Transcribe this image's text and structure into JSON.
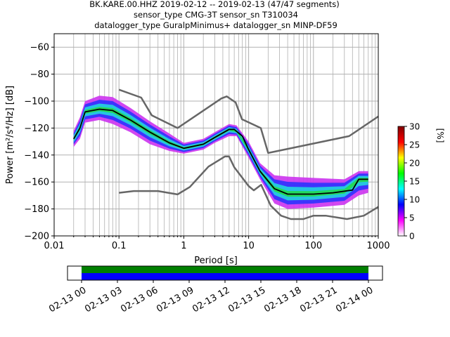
{
  "title": {
    "line1": "BK.KARE.00.HHZ   2019-02-12 -- 2019-02-13  (47/47 segments)",
    "line2": "sensor_type CMG-3T sensor_sn T310034",
    "line3": "datalogger_type GuralpMinimus+ datalogger_sn MINP-DF59"
  },
  "chart_data": [
    {
      "type": "heatmap",
      "xlabel": "Period [s]",
      "ylabel": "Power [m²/s⁴/Hz] [dB]",
      "xscale": "log",
      "xlim": [
        0.01,
        1000
      ],
      "ylim": [
        -200,
        -50
      ],
      "xticks": [
        "0.01",
        "0.1",
        "1",
        "10",
        "100",
        "1000"
      ],
      "yticks": [
        "−60",
        "−80",
        "−100",
        "−120",
        "−140",
        "−160",
        "−180",
        "−200"
      ],
      "grid": true,
      "colorbar": {
        "label": "[%]",
        "range": [
          0,
          30
        ],
        "ticks": [
          "0",
          "5",
          "10",
          "15",
          "20",
          "25",
          "30"
        ],
        "colors": [
          "#ffffff",
          "#ff00ff",
          "#0000ff",
          "#00ffff",
          "#00ff00",
          "#ffff00",
          "#ff0000",
          "#800000"
        ]
      },
      "density_band": {
        "upper": [
          {
            "x": 0.02,
            "y": -122
          },
          {
            "x": 0.025,
            "y": -112
          },
          {
            "x": 0.03,
            "y": -100
          },
          {
            "x": 0.05,
            "y": -96
          },
          {
            "x": 0.08,
            "y": -97
          },
          {
            "x": 0.15,
            "y": -105
          },
          {
            "x": 0.3,
            "y": -115
          },
          {
            "x": 0.6,
            "y": -124
          },
          {
            "x": 1.0,
            "y": -131
          },
          {
            "x": 2.0,
            "y": -128
          },
          {
            "x": 3.0,
            "y": -123
          },
          {
            "x": 5.0,
            "y": -117
          },
          {
            "x": 6.5,
            "y": -118
          },
          {
            "x": 10,
            "y": -130
          },
          {
            "x": 15,
            "y": -146
          },
          {
            "x": 25,
            "y": -155
          },
          {
            "x": 40,
            "y": -156
          },
          {
            "x": 100,
            "y": -157
          },
          {
            "x": 300,
            "y": -158
          },
          {
            "x": 500,
            "y": -152
          },
          {
            "x": 700,
            "y": -152
          }
        ],
        "lower": [
          {
            "x": 0.02,
            "y": -134
          },
          {
            "x": 0.025,
            "y": -128
          },
          {
            "x": 0.03,
            "y": -116
          },
          {
            "x": 0.05,
            "y": -114
          },
          {
            "x": 0.08,
            "y": -117
          },
          {
            "x": 0.15,
            "y": -123
          },
          {
            "x": 0.3,
            "y": -132
          },
          {
            "x": 0.6,
            "y": -137
          },
          {
            "x": 1.0,
            "y": -139
          },
          {
            "x": 2.0,
            "y": -136
          },
          {
            "x": 3.0,
            "y": -131
          },
          {
            "x": 5.0,
            "y": -126
          },
          {
            "x": 6.5,
            "y": -126
          },
          {
            "x": 10,
            "y": -142
          },
          {
            "x": 15,
            "y": -158
          },
          {
            "x": 25,
            "y": -176
          },
          {
            "x": 40,
            "y": -180
          },
          {
            "x": 100,
            "y": -179
          },
          {
            "x": 300,
            "y": -177
          },
          {
            "x": 500,
            "y": -170
          },
          {
            "x": 700,
            "y": -168
          }
        ]
      },
      "series": [
        {
          "type": "line",
          "color": "#000000",
          "points": [
            {
              "x": 0.02,
              "y": -128
            },
            {
              "x": 0.025,
              "y": -120
            },
            {
              "x": 0.03,
              "y": -108
            },
            {
              "x": 0.05,
              "y": -106
            },
            {
              "x": 0.08,
              "y": -107
            },
            {
              "x": 0.15,
              "y": -114
            },
            {
              "x": 0.3,
              "y": -123
            },
            {
              "x": 0.6,
              "y": -131
            },
            {
              "x": 1.0,
              "y": -135
            },
            {
              "x": 2.0,
              "y": -132
            },
            {
              "x": 3.0,
              "y": -127
            },
            {
              "x": 5.0,
              "y": -121
            },
            {
              "x": 6.0,
              "y": -121
            },
            {
              "x": 8.0,
              "y": -126
            },
            {
              "x": 10,
              "y": -136
            },
            {
              "x": 15,
              "y": -152
            },
            {
              "x": 25,
              "y": -165
            },
            {
              "x": 40,
              "y": -169
            },
            {
              "x": 100,
              "y": -169
            },
            {
              "x": 200,
              "y": -168
            },
            {
              "x": 400,
              "y": -166
            },
            {
              "x": 500,
              "y": -158
            },
            {
              "x": 700,
              "y": -158
            }
          ]
        },
        {
          "type": "line",
          "color": "#666666",
          "points": [
            {
              "x": 0.1,
              "y": -91.5
            },
            {
              "x": 0.22,
              "y": -97.4
            },
            {
              "x": 0.32,
              "y": -110.5
            },
            {
              "x": 0.8,
              "y": -120
            },
            {
              "x": 3.8,
              "y": -98
            },
            {
              "x": 4.6,
              "y": -96.5
            },
            {
              "x": 6.3,
              "y": -101
            },
            {
              "x": 7.9,
              "y": -113.5
            },
            {
              "x": 15.4,
              "y": -120
            },
            {
              "x": 20,
              "y": -138.5
            },
            {
              "x": 354.8,
              "y": -126
            },
            {
              "x": 1000,
              "y": -111.4
            }
          ]
        },
        {
          "type": "line",
          "color": "#666666",
          "points": [
            {
              "x": 0.1,
              "y": -168
            },
            {
              "x": 0.17,
              "y": -166.7
            },
            {
              "x": 0.4,
              "y": -166.7
            },
            {
              "x": 0.8,
              "y": -169.2
            },
            {
              "x": 1.24,
              "y": -163.7
            },
            {
              "x": 2.4,
              "y": -148.6
            },
            {
              "x": 4.3,
              "y": -141.1
            },
            {
              "x": 5.0,
              "y": -141.1
            },
            {
              "x": 6.0,
              "y": -149
            },
            {
              "x": 10,
              "y": -163
            },
            {
              "x": 12,
              "y": -166.2
            },
            {
              "x": 15.6,
              "y": -162.1
            },
            {
              "x": 21.9,
              "y": -177.5
            },
            {
              "x": 31.6,
              "y": -185
            },
            {
              "x": 45,
              "y": -187.5
            },
            {
              "x": 70,
              "y": -187.5
            },
            {
              "x": 100,
              "y": -185
            },
            {
              "x": 154.4,
              "y": -185
            },
            {
              "x": 328.9,
              "y": -187.5
            },
            {
              "x": 600,
              "y": -185
            },
            {
              "x": 1000,
              "y": -178.5
            }
          ]
        }
      ]
    },
    {
      "type": "bar",
      "subtype": "data coverage timeline",
      "xticks": [
        "02-13 00",
        "02-13 03",
        "02-13 06",
        "02-13 09",
        "02-13 12",
        "02-13 15",
        "02-13 18",
        "02-13 21",
        "02-14 00"
      ],
      "coverage": {
        "start": "02-13 00",
        "end": "02-14 00"
      },
      "rows": [
        {
          "color": "#008000"
        },
        {
          "color": "#0000ff"
        }
      ]
    }
  ]
}
